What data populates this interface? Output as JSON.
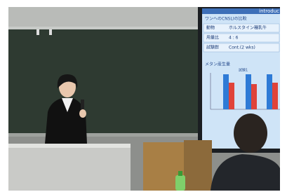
{
  "slide": {
    "header": "introduc",
    "title": "ワンへのCNSLIの比較",
    "rows": [
      [
        "動物",
        "ホルスタイン種乳牛"
      ],
      [
        "用量比",
        "4 : 6"
      ],
      [
        "試験群",
        "Cont.(2 wks)"
      ]
    ],
    "chart_title": "メタン産生量",
    "group_label": "試験1"
  }
}
